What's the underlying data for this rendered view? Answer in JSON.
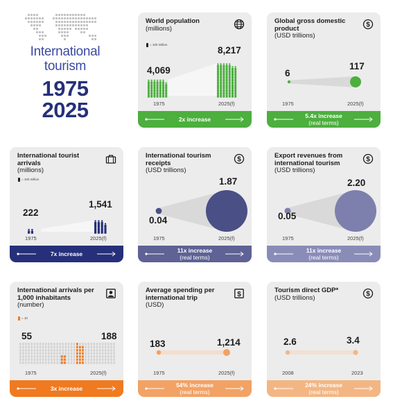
{
  "hero": {
    "title_line1": "International",
    "title_line2": "tourism",
    "year_start": "1975",
    "year_end": "2025"
  },
  "colors": {
    "green": "#4caf3e",
    "navy": "#26307a",
    "slate": "#5e6294",
    "lilac": "#8a8cb8",
    "orange": "#f07a20",
    "peach": "#f2a264",
    "apricot": "#f3b683",
    "card": "#ececec"
  },
  "cards": [
    {
      "id": "world-population",
      "title": "World population",
      "subtitle": "(millions)",
      "legend": "= 100 million",
      "icon": "globe-icon",
      "start_label": "1975",
      "end_label": "2025(f)",
      "start_value": "4,069",
      "end_value": "8,217",
      "start_num": 4069,
      "end_num": 8217,
      "band_line1": "2x increase",
      "band_line2": "",
      "color": "green"
    },
    {
      "id": "global-gdp",
      "title": "Global gross domestic product",
      "subtitle": "(USD trillions)",
      "legend": "",
      "icon": "dollar-icon",
      "start_label": "1975",
      "end_label": "2025(f)",
      "start_value": "6",
      "end_value": "117",
      "start_num": 6,
      "end_num": 117,
      "band_line1": "5.4x increase",
      "band_line2": "(real terms)",
      "color": "green"
    },
    {
      "id": "tourist-arrivals",
      "title": "International tourist arrivals",
      "subtitle": "(millions)",
      "legend": "= 100 million",
      "icon": "luggage-icon",
      "start_label": "1975",
      "end_label": "2025(f)",
      "start_value": "222",
      "end_value": "1,541",
      "start_num": 222,
      "end_num": 1541,
      "band_line1": "7x increase",
      "band_line2": "",
      "color": "navy"
    },
    {
      "id": "tourism-receipts",
      "title": "International tourism receipts",
      "subtitle": "(USD trillions)",
      "legend": "",
      "icon": "dollar-icon",
      "start_label": "1975",
      "end_label": "2025(f)",
      "start_value": "0.04",
      "end_value": "1.87",
      "start_num": 0.04,
      "end_num": 1.87,
      "band_line1": "11x increase",
      "band_line2": "(real terms)",
      "color": "slate"
    },
    {
      "id": "export-revenues",
      "title": "Export revenues from international tourism",
      "subtitle": "(USD trillions)",
      "legend": "",
      "icon": "dollar-icon",
      "start_label": "1975",
      "end_label": "2025(f)",
      "start_value": "0.05",
      "end_value": "2.20",
      "start_num": 0.05,
      "end_num": 2.2,
      "band_line1": "11x increase",
      "band_line2": "(real terms)",
      "color": "lilac"
    },
    {
      "id": "arrivals-per-1000",
      "title": "International arrivals per 1,000 inhabitants",
      "subtitle": "(number)",
      "legend": "= 10",
      "icon": "portrait-icon",
      "start_label": "1975",
      "end_label": "2025(f)",
      "start_value": "55",
      "end_value": "188",
      "start_num": 55,
      "end_num": 188,
      "band_line1": "3x increase",
      "band_line2": "",
      "color": "orange"
    },
    {
      "id": "average-spending",
      "title": "Average spending per international trip",
      "subtitle": "(USD)",
      "legend": "",
      "icon": "dollar-bill-icon",
      "start_label": "1975",
      "end_label": "2025(f)",
      "start_value": "183",
      "end_value": "1,214",
      "start_num": 183,
      "end_num": 1214,
      "band_line1": "54% increase",
      "band_line2": "(real terms)",
      "color": "peach"
    },
    {
      "id": "tourism-direct-gdp",
      "title": "Tourism direct GDP*",
      "subtitle": "(USD trillions)",
      "legend": "",
      "icon": "dollar-icon",
      "start_label": "2008",
      "end_label": "2023",
      "start_value": "2.6",
      "end_value": "3.4",
      "start_num": 2.6,
      "end_num": 3.4,
      "band_line1": "24% increase",
      "band_line2": "(real terms)",
      "color": "apricot"
    }
  ]
}
